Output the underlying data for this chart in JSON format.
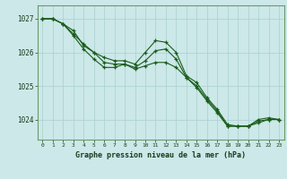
{
  "title": "Graphe pression niveau de la mer (hPa)",
  "background_color": "#cce8e8",
  "line_color": "#1a5c1a",
  "grid_color": "#aacfcf",
  "xlim": [
    -0.5,
    23.5
  ],
  "ylim": [
    1023.4,
    1027.4
  ],
  "yticks": [
    1024,
    1025,
    1026,
    1027
  ],
  "xticks": [
    0,
    1,
    2,
    3,
    4,
    5,
    6,
    7,
    8,
    9,
    10,
    11,
    12,
    13,
    14,
    15,
    16,
    17,
    18,
    19,
    20,
    21,
    22,
    23
  ],
  "series": [
    [
      1027.0,
      1027.0,
      1026.85,
      1026.65,
      1026.2,
      1026.0,
      1025.85,
      1025.75,
      1025.75,
      1025.65,
      1026.0,
      1026.35,
      1026.3,
      1026.0,
      1025.3,
      1025.1,
      1024.65,
      1024.3,
      1023.85,
      1023.8,
      1023.8,
      1024.0,
      1024.05,
      1024.0
    ],
    [
      1027.0,
      1027.0,
      1026.85,
      1026.5,
      1026.1,
      1025.8,
      1025.55,
      1025.55,
      1025.65,
      1025.55,
      1025.75,
      1026.05,
      1026.1,
      1025.8,
      1025.25,
      1025.0,
      1024.6,
      1024.25,
      1023.8,
      1023.8,
      1023.8,
      1023.95,
      1024.0,
      1024.0
    ],
    [
      1027.0,
      1027.0,
      1026.85,
      1026.55,
      1026.25,
      1026.0,
      1025.7,
      1025.65,
      1025.65,
      1025.5,
      1025.6,
      1025.7,
      1025.7,
      1025.55,
      1025.25,
      1024.95,
      1024.55,
      1024.2,
      1023.8,
      1023.8,
      1023.8,
      1023.9,
      1024.0,
      1024.0
    ]
  ]
}
